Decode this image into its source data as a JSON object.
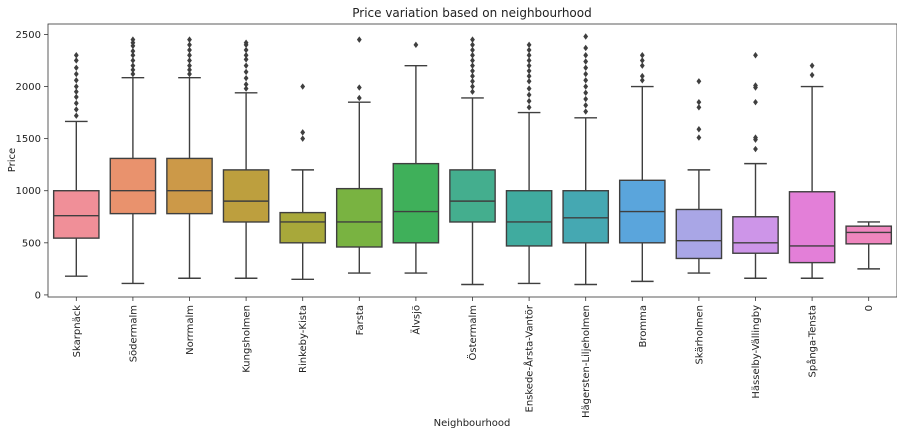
{
  "chart_data": {
    "type": "box",
    "title": "Price variation based on neighbourhood",
    "xlabel": "Neighbourhood",
    "ylabel": "Price",
    "ylim": [
      -20,
      2600
    ],
    "yticks": [
      0,
      500,
      1000,
      1500,
      2000,
      2500
    ],
    "grid": false,
    "categories": [
      "Skarpnäck",
      "Södermalm",
      "Norrmalm",
      "Kungsholmen",
      "Rinkeby-Kista",
      "Farsta",
      "Älvsjö",
      "Östermalm",
      "Enskede-Årsta-Vantör",
      "Hägersten-Liljeholmen",
      "Bromma",
      "Skärholmen",
      "Hässelby-Vällingby",
      "Spånga-Tensta",
      "0"
    ],
    "colors": [
      "#f08f98",
      "#e9926d",
      "#cc9948",
      "#bd9f3e",
      "#a8a83a",
      "#79b341",
      "#3fb05a",
      "#44ae8e",
      "#40ab9f",
      "#45a8b2",
      "#5aa5dc",
      "#a9a6e6",
      "#cd95e8",
      "#e37fd8",
      "#ef86be"
    ],
    "boxes": [
      {
        "whislo": 180,
        "q1": 545,
        "med": 760,
        "q3": 1000,
        "whishi": 1665,
        "fliers": [
          1720,
          1780,
          1840,
          1900,
          1950,
          2000,
          2060,
          2120,
          2180,
          2250,
          2300
        ]
      },
      {
        "whislo": 110,
        "q1": 780,
        "med": 1000,
        "q3": 1310,
        "whishi": 2085,
        "fliers": [
          2120,
          2160,
          2200,
          2250,
          2300,
          2340,
          2390,
          2420,
          2450
        ]
      },
      {
        "whislo": 160,
        "q1": 780,
        "med": 1000,
        "q3": 1310,
        "whishi": 2085,
        "fliers": [
          2120,
          2160,
          2200,
          2250,
          2300,
          2350,
          2400,
          2450
        ]
      },
      {
        "whislo": 160,
        "q1": 700,
        "med": 900,
        "q3": 1200,
        "whishi": 1940,
        "fliers": [
          1980,
          2020,
          2080,
          2140,
          2200,
          2260,
          2300,
          2350,
          2400,
          2420
        ]
      },
      {
        "whislo": 150,
        "q1": 500,
        "med": 700,
        "q3": 790,
        "whishi": 1200,
        "fliers": [
          1500,
          1560,
          2000
        ]
      },
      {
        "whislo": 210,
        "q1": 460,
        "med": 700,
        "q3": 1020,
        "whishi": 1850,
        "fliers": [
          1890,
          1990,
          2450
        ]
      },
      {
        "whislo": 210,
        "q1": 500,
        "med": 800,
        "q3": 1260,
        "whishi": 2200,
        "fliers": [
          2400
        ]
      },
      {
        "whislo": 100,
        "q1": 700,
        "med": 900,
        "q3": 1200,
        "whishi": 1890,
        "fliers": [
          1950,
          2000,
          2050,
          2100,
          2150,
          2200,
          2250,
          2300,
          2350,
          2400,
          2450
        ]
      },
      {
        "whislo": 110,
        "q1": 470,
        "med": 700,
        "q3": 1000,
        "whishi": 1750,
        "fliers": [
          1800,
          1860,
          1920,
          1980,
          2050,
          2100,
          2150,
          2200,
          2250,
          2300,
          2350,
          2400
        ]
      },
      {
        "whislo": 100,
        "q1": 500,
        "med": 740,
        "q3": 1000,
        "whishi": 1700,
        "fliers": [
          1760,
          1820,
          1880,
          1940,
          2000,
          2060,
          2120,
          2180,
          2240,
          2300,
          2370,
          2480
        ]
      },
      {
        "whislo": 130,
        "q1": 500,
        "med": 800,
        "q3": 1100,
        "whishi": 2000,
        "fliers": [
          2060,
          2100,
          2200,
          2250,
          2300
        ]
      },
      {
        "whislo": 210,
        "q1": 350,
        "med": 520,
        "q3": 820,
        "whishi": 1200,
        "fliers": [
          1510,
          1590,
          1800,
          1850,
          2050
        ]
      },
      {
        "whislo": 160,
        "q1": 400,
        "med": 500,
        "q3": 750,
        "whishi": 1260,
        "fliers": [
          1400,
          1490,
          1510,
          1850,
          1990,
          2010,
          2300
        ]
      },
      {
        "whislo": 160,
        "q1": 310,
        "med": 470,
        "q3": 990,
        "whishi": 2000,
        "fliers": [
          2110,
          2200
        ]
      },
      {
        "whislo": 250,
        "q1": 490,
        "med": 600,
        "q3": 660,
        "whishi": 700,
        "fliers": []
      }
    ]
  }
}
